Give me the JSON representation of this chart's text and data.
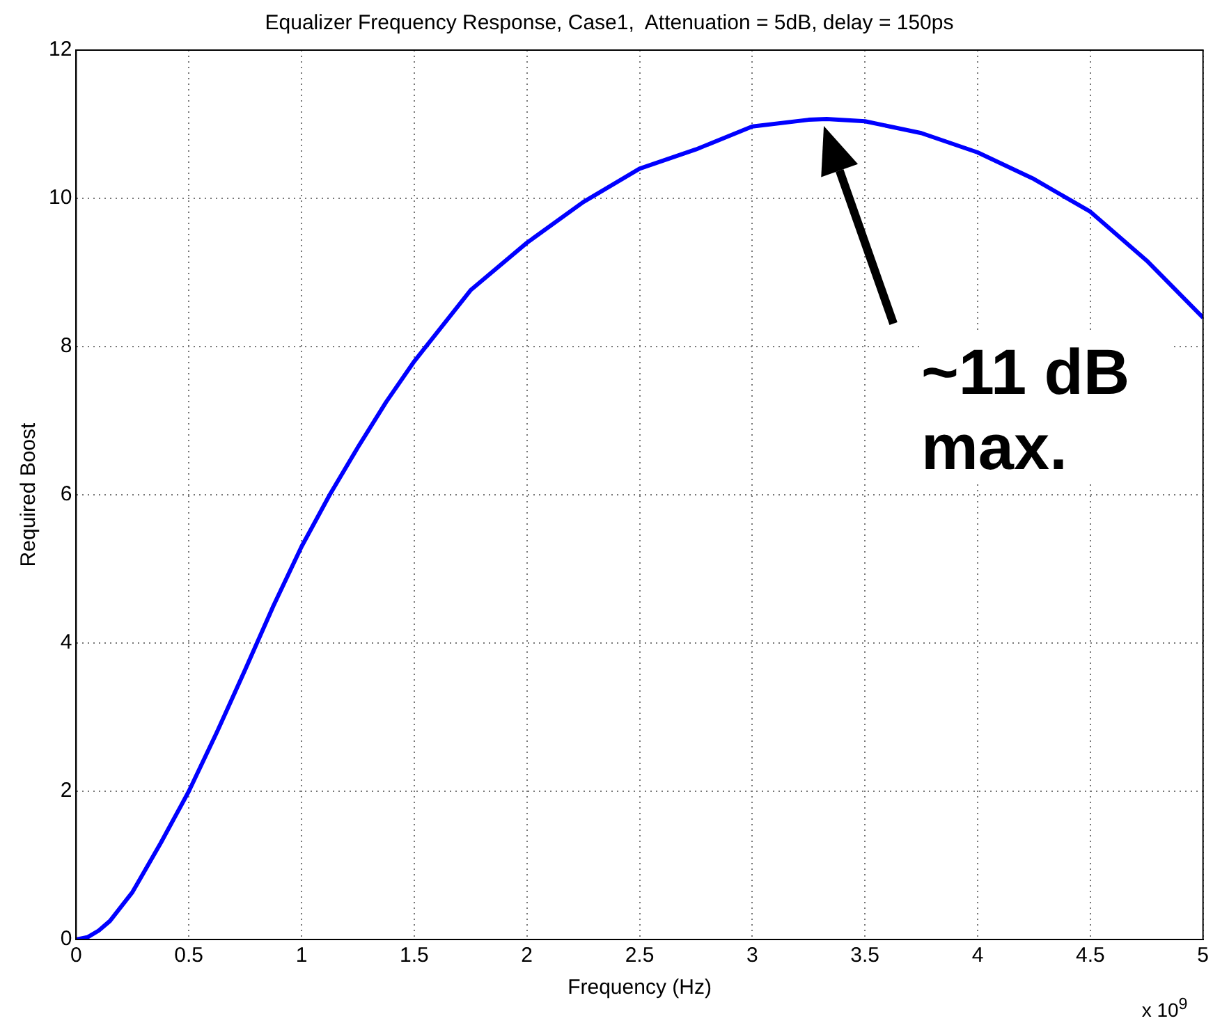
{
  "chart_data": {
    "type": "line",
    "title": "Equalizer Frequency Response, Case1,  Attenuation = 5dB, delay = 150ps",
    "xlabel": "Frequency (Hz)",
    "ylabel": "Required Boost",
    "x": [
      0,
      0.05,
      0.1,
      0.15,
      0.25,
      0.375,
      0.5,
      0.625,
      0.75,
      0.875,
      1,
      1.125,
      1.25,
      1.375,
      1.5,
      1.75,
      2,
      2.25,
      2.5,
      2.75,
      3,
      3.25,
      3.33,
      3.5,
      3.75,
      4,
      4.25,
      4.5,
      4.75,
      5
    ],
    "series": [
      {
        "color": "#0000ff",
        "values": [
          0,
          0.03,
          0.12,
          0.25,
          0.64,
          1.3,
          2.0,
          2.8,
          3.64,
          4.5,
          5.3,
          6.0,
          6.64,
          7.25,
          7.8,
          8.76,
          9.4,
          9.95,
          10.4,
          10.66,
          10.97,
          11.06,
          11.07,
          11.04,
          10.88,
          10.62,
          10.26,
          9.82,
          9.16,
          8.39
        ]
      }
    ],
    "xlim": [
      0,
      5
    ],
    "xticks": [
      0,
      0.5,
      1,
      1.5,
      2,
      2.5,
      3,
      3.5,
      4,
      4.5,
      5
    ],
    "ylim": [
      0,
      12
    ],
    "yticks": [
      0,
      2,
      4,
      6,
      8,
      10,
      12
    ],
    "grid": true,
    "marker": "none",
    "line_style": "solid",
    "annotations": [
      "~11 dB max.",
      "x 10$^{9}$"
    ]
  }
}
